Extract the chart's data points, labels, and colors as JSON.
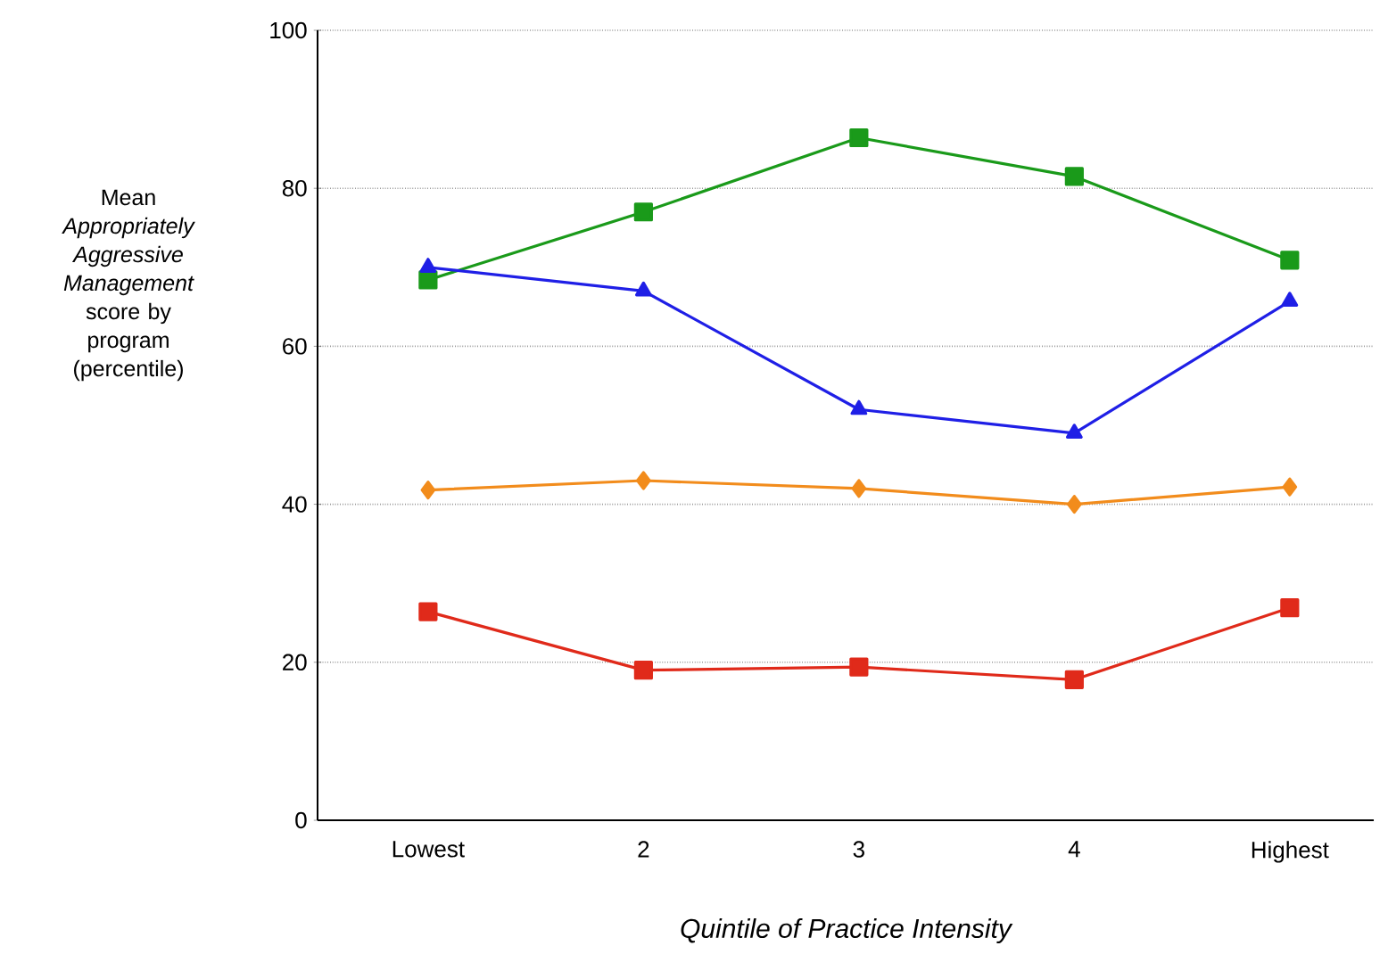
{
  "chart_data": {
    "type": "line",
    "xlabel": "Quintile of Practice Intensity",
    "ylabel": "Mean *Appropriately Aggressive Management* score by program (percentile)",
    "categories": [
      "Lowest",
      "2",
      "3",
      "4",
      "Highest"
    ],
    "series": [
      {
        "color": "#1a9a1a",
        "marker": "square",
        "values": [
          68.4,
          77,
          86.4,
          81.5,
          70.9
        ]
      },
      {
        "color": "#1f1fe6",
        "marker": "triangle",
        "values": [
          70,
          67,
          52,
          49,
          65.7
        ]
      },
      {
        "color": "#f28c1c",
        "marker": "diamond",
        "values": [
          41.8,
          43,
          42,
          40,
          42.2
        ]
      },
      {
        "color": "#e02a1a",
        "marker": "square",
        "values": [
          26.4,
          19,
          19.4,
          17.8,
          26.9
        ]
      }
    ],
    "ylim": [
      0,
      100
    ],
    "yticks": [
      0,
      20,
      40,
      60,
      80,
      100
    ],
    "grid": "y",
    "line_style": "solid"
  }
}
